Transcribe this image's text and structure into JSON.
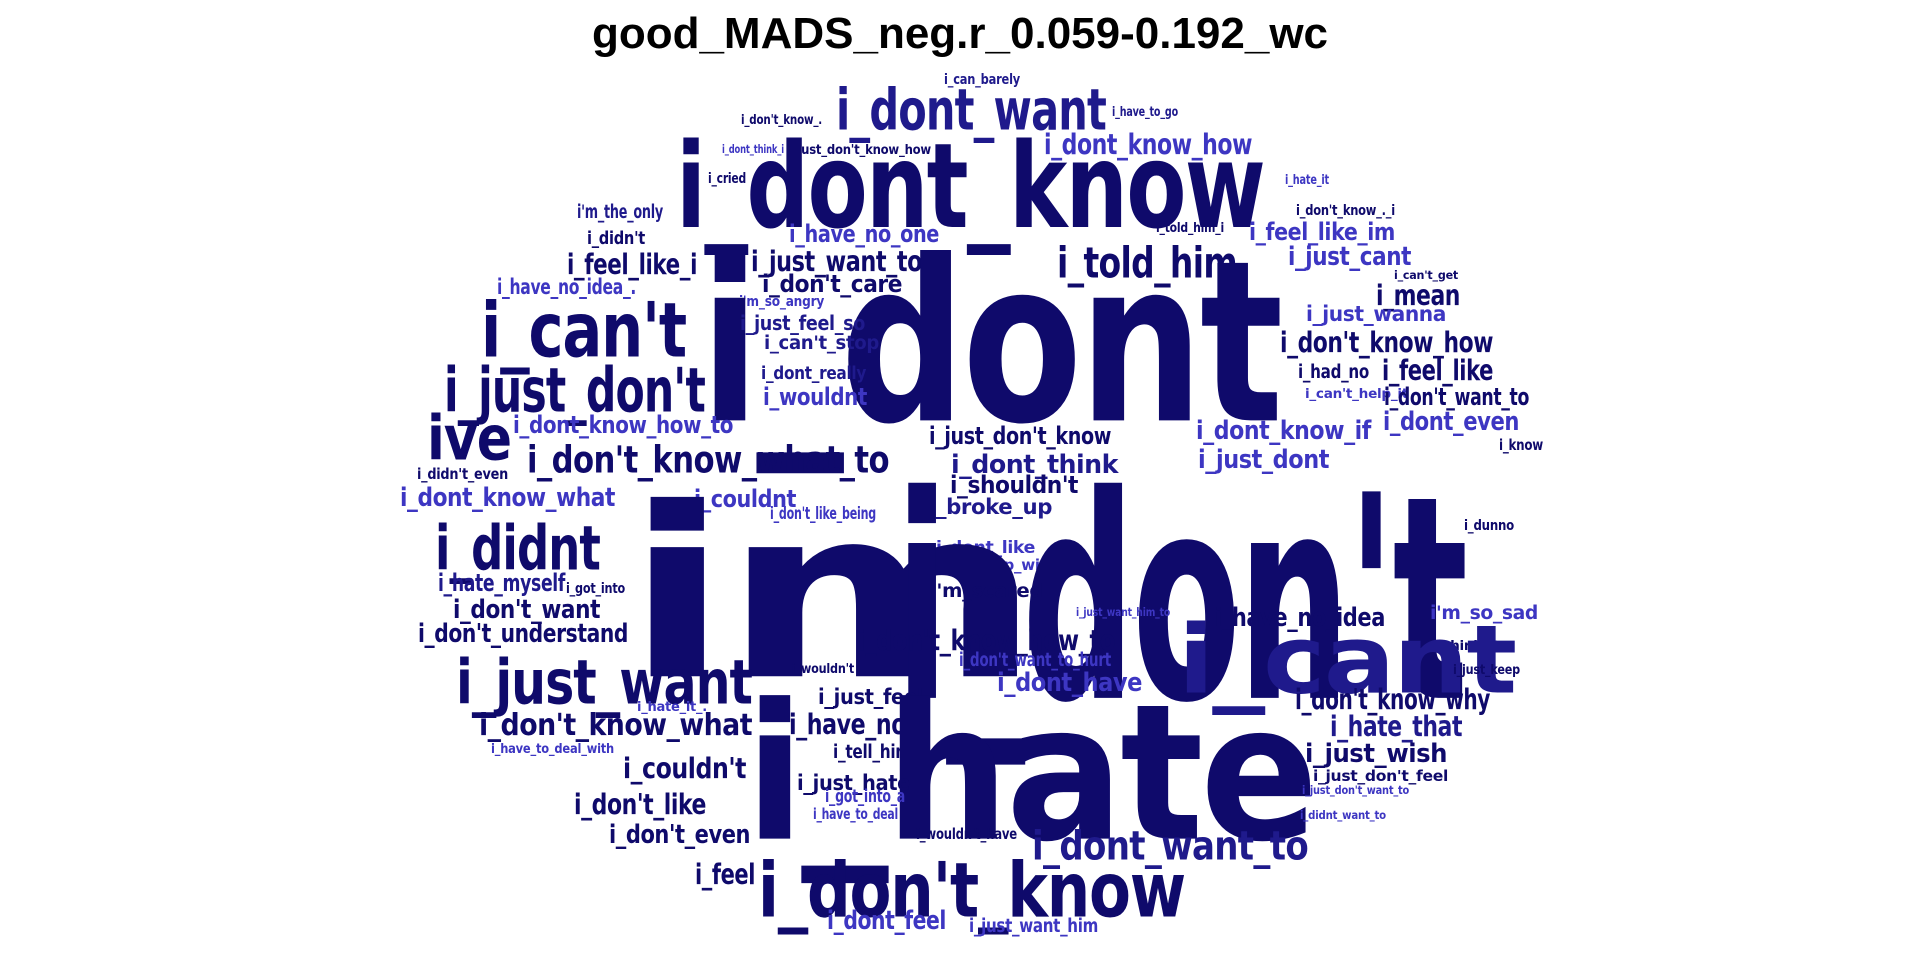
{
  "title": "good_MADS_neg.r_0.059-0.192_wc",
  "colors": {
    "dark": "#0f0a6b",
    "mid": "#1f1a8c",
    "light": "#3d36c2"
  },
  "words": [
    {
      "text": "i_can_barely",
      "c": "mid"
    },
    {
      "text": "i_don't_know_.",
      "c": "dark"
    },
    {
      "text": "i_dont_want",
      "c": "mid"
    },
    {
      "text": "i_have_to_go",
      "c": "mid"
    },
    {
      "text": "i_dont_know_how",
      "c": "light"
    },
    {
      "text": "i_dont_think_i",
      "c": "light"
    },
    {
      "text": "i_just_don't_know_how",
      "c": "dark"
    },
    {
      "text": "i_dont_know",
      "c": "dark"
    },
    {
      "text": "i_cried",
      "c": "dark"
    },
    {
      "text": "i_hate_it",
      "c": "light"
    },
    {
      "text": "i'm_the_only",
      "c": "mid"
    },
    {
      "text": "i_don't_know_._i",
      "c": "dark"
    },
    {
      "text": "i_have_no_one",
      "c": "light"
    },
    {
      "text": "i_told_him_i",
      "c": "dark"
    },
    {
      "text": "i_feel_like_im",
      "c": "light"
    },
    {
      "text": "i_didn't",
      "c": "dark"
    },
    {
      "text": "i_feel_like_i",
      "c": "dark"
    },
    {
      "text": "i_just_want_to",
      "c": "dark"
    },
    {
      "text": "i_told_him",
      "c": "dark"
    },
    {
      "text": "i_just_cant",
      "c": "light"
    },
    {
      "text": "i_can't_get",
      "c": "dark"
    },
    {
      "text": "i_have_no_idea_.",
      "c": "light"
    },
    {
      "text": "i_don't_care",
      "c": "dark"
    },
    {
      "text": "i_mean",
      "c": "dark"
    },
    {
      "text": "i'm_so_angry",
      "c": "light"
    },
    {
      "text": "i_can't",
      "c": "dark"
    },
    {
      "text": "i_dont",
      "c": "dark"
    },
    {
      "text": "i_just_wanna",
      "c": "light"
    },
    {
      "text": "i_just_feel_so",
      "c": "mid"
    },
    {
      "text": "i_can't_stop",
      "c": "mid"
    },
    {
      "text": "i_don't_know_how",
      "c": "dark"
    },
    {
      "text": "i_had_no",
      "c": "dark"
    },
    {
      "text": "i_feel_like",
      "c": "dark"
    },
    {
      "text": "i_dont_really",
      "c": "mid"
    },
    {
      "text": "i_just_don't",
      "c": "dark"
    },
    {
      "text": "i_wouldnt",
      "c": "light"
    },
    {
      "text": "i_can't_help_it",
      "c": "light"
    },
    {
      "text": "i_don't_want_to",
      "c": "dark"
    },
    {
      "text": "i_dont_even",
      "c": "light"
    },
    {
      "text": "ive",
      "c": "dark"
    },
    {
      "text": "i_dont_know_how_to",
      "c": "light"
    },
    {
      "text": "i_dont_know_if",
      "c": "light"
    },
    {
      "text": "i_just_don't_know",
      "c": "dark"
    },
    {
      "text": "i_know",
      "c": "dark"
    },
    {
      "text": "i_don't_know_what_to",
      "c": "dark"
    },
    {
      "text": "i_dont_think",
      "c": "mid"
    },
    {
      "text": "i_just_dont",
      "c": "light"
    },
    {
      "text": "i_didn't_even",
      "c": "dark"
    },
    {
      "text": "i_shouldn't",
      "c": "dark"
    },
    {
      "text": "i_dont_know_what",
      "c": "light"
    },
    {
      "text": "i_couldnt",
      "c": "light"
    },
    {
      "text": "i_broke_up",
      "c": "mid"
    },
    {
      "text": "i_don't_like_being",
      "c": "light"
    },
    {
      "text": "i_dunno",
      "c": "dark"
    },
    {
      "text": "i_didnt",
      "c": "dark"
    },
    {
      "text": "i_dont_like",
      "c": "light"
    },
    {
      "text": "i_broke_up_with",
      "c": "light"
    },
    {
      "text": "im",
      "c": "dark"
    },
    {
      "text": "i_don't",
      "c": "dark"
    },
    {
      "text": "i_hate_myself",
      "c": "mid"
    },
    {
      "text": "i_got_into",
      "c": "dark"
    },
    {
      "text": "i'm_scared",
      "c": "dark"
    },
    {
      "text": "i_don't_want",
      "c": "dark"
    },
    {
      "text": "i_just_want_him_to",
      "c": "light"
    },
    {
      "text": "i_have_no_idea",
      "c": "dark"
    },
    {
      "text": "i'm_so_sad",
      "c": "light"
    },
    {
      "text": "i_don't_understand",
      "c": "dark"
    },
    {
      "text": "i_don't_know_how_to",
      "c": "dark"
    },
    {
      "text": "i_think_its",
      "c": "dark"
    },
    {
      "text": "i_cant",
      "c": "mid"
    },
    {
      "text": "i_wouldn't",
      "c": "dark"
    },
    {
      "text": "i_don't_want_to_hurt",
      "c": "light"
    },
    {
      "text": "i_just_want",
      "c": "dark"
    },
    {
      "text": "i_dont_have",
      "c": "light"
    },
    {
      "text": "i_just_keep",
      "c": "dark"
    },
    {
      "text": "i_don't_know_why",
      "c": "dark"
    },
    {
      "text": "i_just_feel",
      "c": "dark"
    },
    {
      "text": "i_hate_it_.",
      "c": "light"
    },
    {
      "text": "i_don't_know_what",
      "c": "dark"
    },
    {
      "text": "i_have_no",
      "c": "dark"
    },
    {
      "text": "i_hate_that",
      "c": "mid"
    },
    {
      "text": "i_have_to_deal_with",
      "c": "light"
    },
    {
      "text": "i_tell_him",
      "c": "dark"
    },
    {
      "text": "i_just_wish",
      "c": "dark"
    },
    {
      "text": "i_couldn't",
      "c": "dark"
    },
    {
      "text": "i_hate",
      "c": "dark"
    },
    {
      "text": "i_just_don't_feel",
      "c": "dark"
    },
    {
      "text": "i_just_hate",
      "c": "dark"
    },
    {
      "text": "i_just_don't_want_to",
      "c": "light"
    },
    {
      "text": "i_got_into_a",
      "c": "light"
    },
    {
      "text": "i_have_to_deal",
      "c": "light"
    },
    {
      "text": "i_don't_like",
      "c": "dark"
    },
    {
      "text": "i_didnt_want_to",
      "c": "light"
    },
    {
      "text": "i_wouldn't_have",
      "c": "dark"
    },
    {
      "text": "i_don't_even",
      "c": "dark"
    },
    {
      "text": "i_dont_want_to",
      "c": "mid"
    },
    {
      "text": "i_feel",
      "c": "dark"
    },
    {
      "text": "i_don't_know",
      "c": "dark"
    },
    {
      "text": "i_dont_feel",
      "c": "light"
    },
    {
      "text": "i_just_want_him",
      "c": "light"
    }
  ]
}
